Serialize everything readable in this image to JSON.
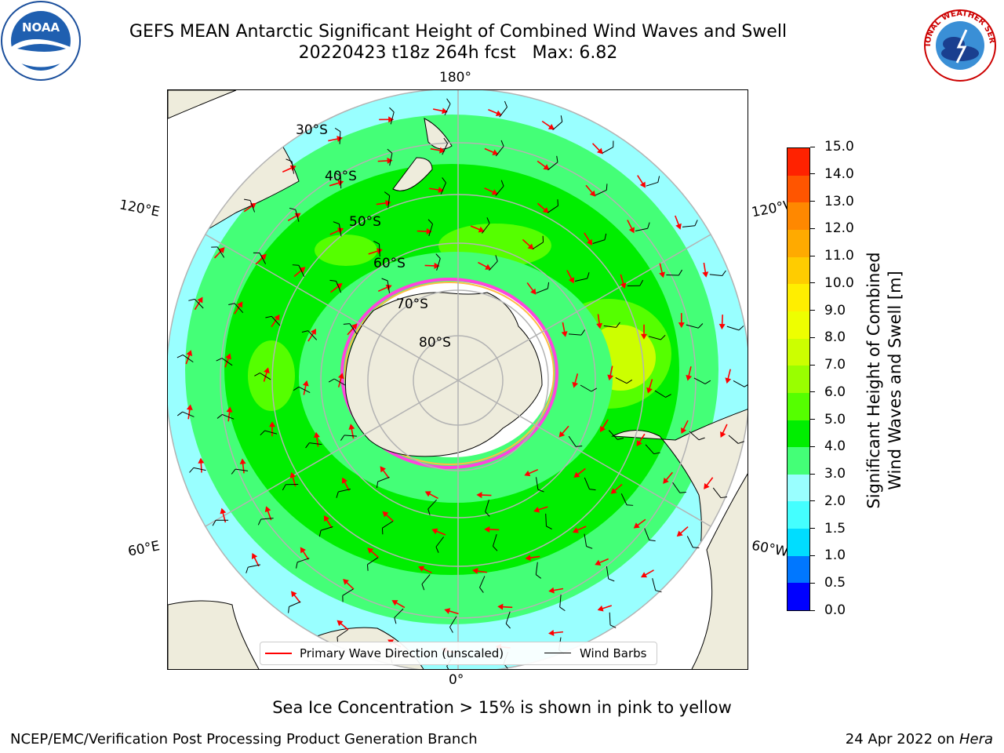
{
  "header": {
    "title_line1": "GEFS MEAN Antarctic Significant Height of Combined Wind Waves and Swell",
    "title_line2": "20220423 t18z 264h fcst   Max: 6.82",
    "noaa_logo_text": "NOAA",
    "nws_logo_text": "NATIONAL WEATHER SERVICE"
  },
  "map": {
    "projection": "south polar stereographic",
    "longitude_labels": {
      "top": "180°",
      "bottom": "0°",
      "left_upper": "120°E",
      "left_lower": "60°E",
      "right_upper": "120°W",
      "right_lower": "60°W"
    },
    "latitude_labels": [
      "30°S",
      "40°S",
      "50°S",
      "60°S",
      "70°S",
      "80°S"
    ],
    "colors": {
      "land": "#eeecdc",
      "ice_edge_pink": "#ff44dd",
      "ice_edge_yellow": "#ffbb44",
      "wave_arrow": "#ff0000",
      "wind_barb": "#000000",
      "grid": "#b3b3b3"
    }
  },
  "colorbar": {
    "label_line1": "Significant Height of Combined",
    "label_line2": "Wind Waves and Swell [m]",
    "ticks": [
      "0.0",
      "0.5",
      "1.0",
      "1.5",
      "2.0",
      "3.0",
      "4.0",
      "5.0",
      "6.0",
      "7.0",
      "8.0",
      "9.0",
      "10.0",
      "11.0",
      "12.0",
      "13.0",
      "14.0",
      "15.0"
    ],
    "colors": [
      "#0000ff",
      "#0077ff",
      "#00ddff",
      "#44ffff",
      "#99ffff",
      "#44ff77",
      "#00ee00",
      "#55ff00",
      "#99ff00",
      "#ccff00",
      "#eeff00",
      "#ffee00",
      "#ffcc00",
      "#ffaa00",
      "#ff8800",
      "#ff5500",
      "#ff2200"
    ]
  },
  "legend": {
    "primary_wave_label": "Primary Wave Direction (unscaled)",
    "wind_barbs_label": "Wind Barbs"
  },
  "caption": "Sea Ice Concentration > 15% is shown in pink to yellow",
  "footer": {
    "left": "NCEP/EMC/Verification Post Processing Product Generation Branch",
    "right_date": "24 Apr 2022 on",
    "right_machine": "Hera"
  }
}
